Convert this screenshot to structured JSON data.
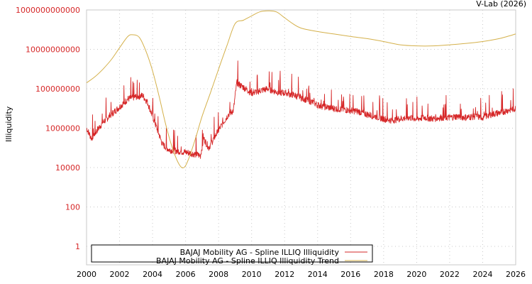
{
  "header": {
    "credit": "V-Lab (2026)"
  },
  "axes": {
    "ylabel": "Illiquidity",
    "y_ticks": [
      "1",
      "100",
      "10000",
      "1000000",
      "100000000",
      "10000000000",
      "1000000000000"
    ],
    "x_ticks": [
      "2000",
      "2002",
      "2004",
      "2006",
      "2008",
      "2010",
      "2012",
      "2014",
      "2016",
      "2018",
      "2020",
      "2022",
      "2024",
      "2026"
    ]
  },
  "legend": {
    "items": [
      {
        "label": "BAJAJ Mobility AG - Spline ILLIQ Illiquidity",
        "color": "#d62728"
      },
      {
        "label": "BAJAJ Mobility AG - Spline ILLIQ Illiquidity Trend",
        "color": "#d4b04a"
      }
    ]
  },
  "colors": {
    "series": "#d62728",
    "trend": "#d4b04a",
    "tick_label": "#d62728",
    "grid": "#c8c8c8"
  },
  "chart_data": {
    "type": "line",
    "title": "",
    "xlabel": "",
    "ylabel": "Illiquidity",
    "yscale": "log",
    "ylim": [
      0.1,
      1000000000000
    ],
    "xlim": [
      2000,
      2026
    ],
    "grid": true,
    "legend_position": "bottom-left inside",
    "series": [
      {
        "name": "BAJAJ Mobility AG - Spline ILLIQ Illiquidity",
        "x": [
          2000.0,
          2000.3,
          2000.6,
          2001.0,
          2001.5,
          2002.0,
          2002.5,
          2003.0,
          2003.4,
          2003.7,
          2004.0,
          2004.3,
          2004.6,
          2005.0,
          2005.5,
          2006.0,
          2006.5,
          2006.9,
          2007.1,
          2007.4,
          2007.8,
          2008.2,
          2008.6,
          2008.9,
          2009.1,
          2009.5,
          2010.0,
          2010.5,
          2011.0,
          2011.5,
          2012.0,
          2012.5,
          2013.0,
          2013.5,
          2014.0,
          2014.5,
          2015.0,
          2015.5,
          2016.0,
          2016.5,
          2017.0,
          2017.5,
          2018.0,
          2018.5,
          2019.0,
          2019.5,
          2020.0,
          2020.5,
          2021.0,
          2021.5,
          2022.0,
          2022.5,
          2023.0,
          2023.5,
          2024.0,
          2024.5,
          2025.0,
          2025.5,
          2026.0
        ],
        "values": [
          1000000,
          300000,
          700000,
          2000000,
          5000000,
          12000000,
          30000000,
          40000000,
          45000000,
          20000000,
          4000000,
          800000,
          150000,
          80000,
          70000,
          60000,
          50000,
          40000,
          300000,
          100000,
          400000,
          1500000,
          5000000,
          8000000,
          200000000,
          120000000,
          60000000,
          80000000,
          100000000,
          70000000,
          60000000,
          50000000,
          35000000,
          25000000,
          15000000,
          12000000,
          10000000,
          9000000,
          8000000,
          7000000,
          5000000,
          4000000,
          3000000,
          2500000,
          3000000,
          3500000,
          3000000,
          3500000,
          3000000,
          3500000,
          3500000,
          4000000,
          3500000,
          4000000,
          3500000,
          5000000,
          6000000,
          8000000,
          10000000
        ]
      },
      {
        "name": "BAJAJ Mobility AG - Spline ILLIQ Illiquidity Trend",
        "x": [
          2000.0,
          2000.5,
          2001.0,
          2001.5,
          2002.0,
          2002.5,
          2002.8,
          2003.2,
          2003.6,
          2004.0,
          2004.4,
          2004.8,
          2005.2,
          2005.6,
          2005.9,
          2006.2,
          2006.6,
          2007.0,
          2007.5,
          2008.0,
          2008.5,
          2009.0,
          2009.5,
          2010.0,
          2010.5,
          2011.0,
          2011.5,
          2012.0,
          2012.5,
          2013.0,
          2014.0,
          2015.0,
          2016.0,
          2017.0,
          2018.0,
          2019.0,
          2020.0,
          2021.0,
          2022.0,
          2023.0,
          2024.0,
          2025.0,
          2026.0
        ],
        "values": [
          200000000,
          400000000,
          1000000000,
          3000000000,
          12000000000,
          45000000000,
          55000000000,
          40000000000,
          8000000000,
          800000000,
          40000000,
          1500000,
          100000,
          15000,
          10000,
          30000,
          300000,
          4000000,
          60000000,
          1000000000,
          15000000000,
          200000000000,
          300000000000,
          500000000000,
          800000000000,
          900000000000,
          800000000000,
          400000000000,
          200000000000,
          120000000000,
          80000000000,
          60000000000,
          45000000000,
          35000000000,
          25000000000,
          17000000000,
          15000000000,
          15000000000,
          17000000000,
          20000000000,
          25000000000,
          35000000000,
          60000000000
        ]
      }
    ]
  }
}
